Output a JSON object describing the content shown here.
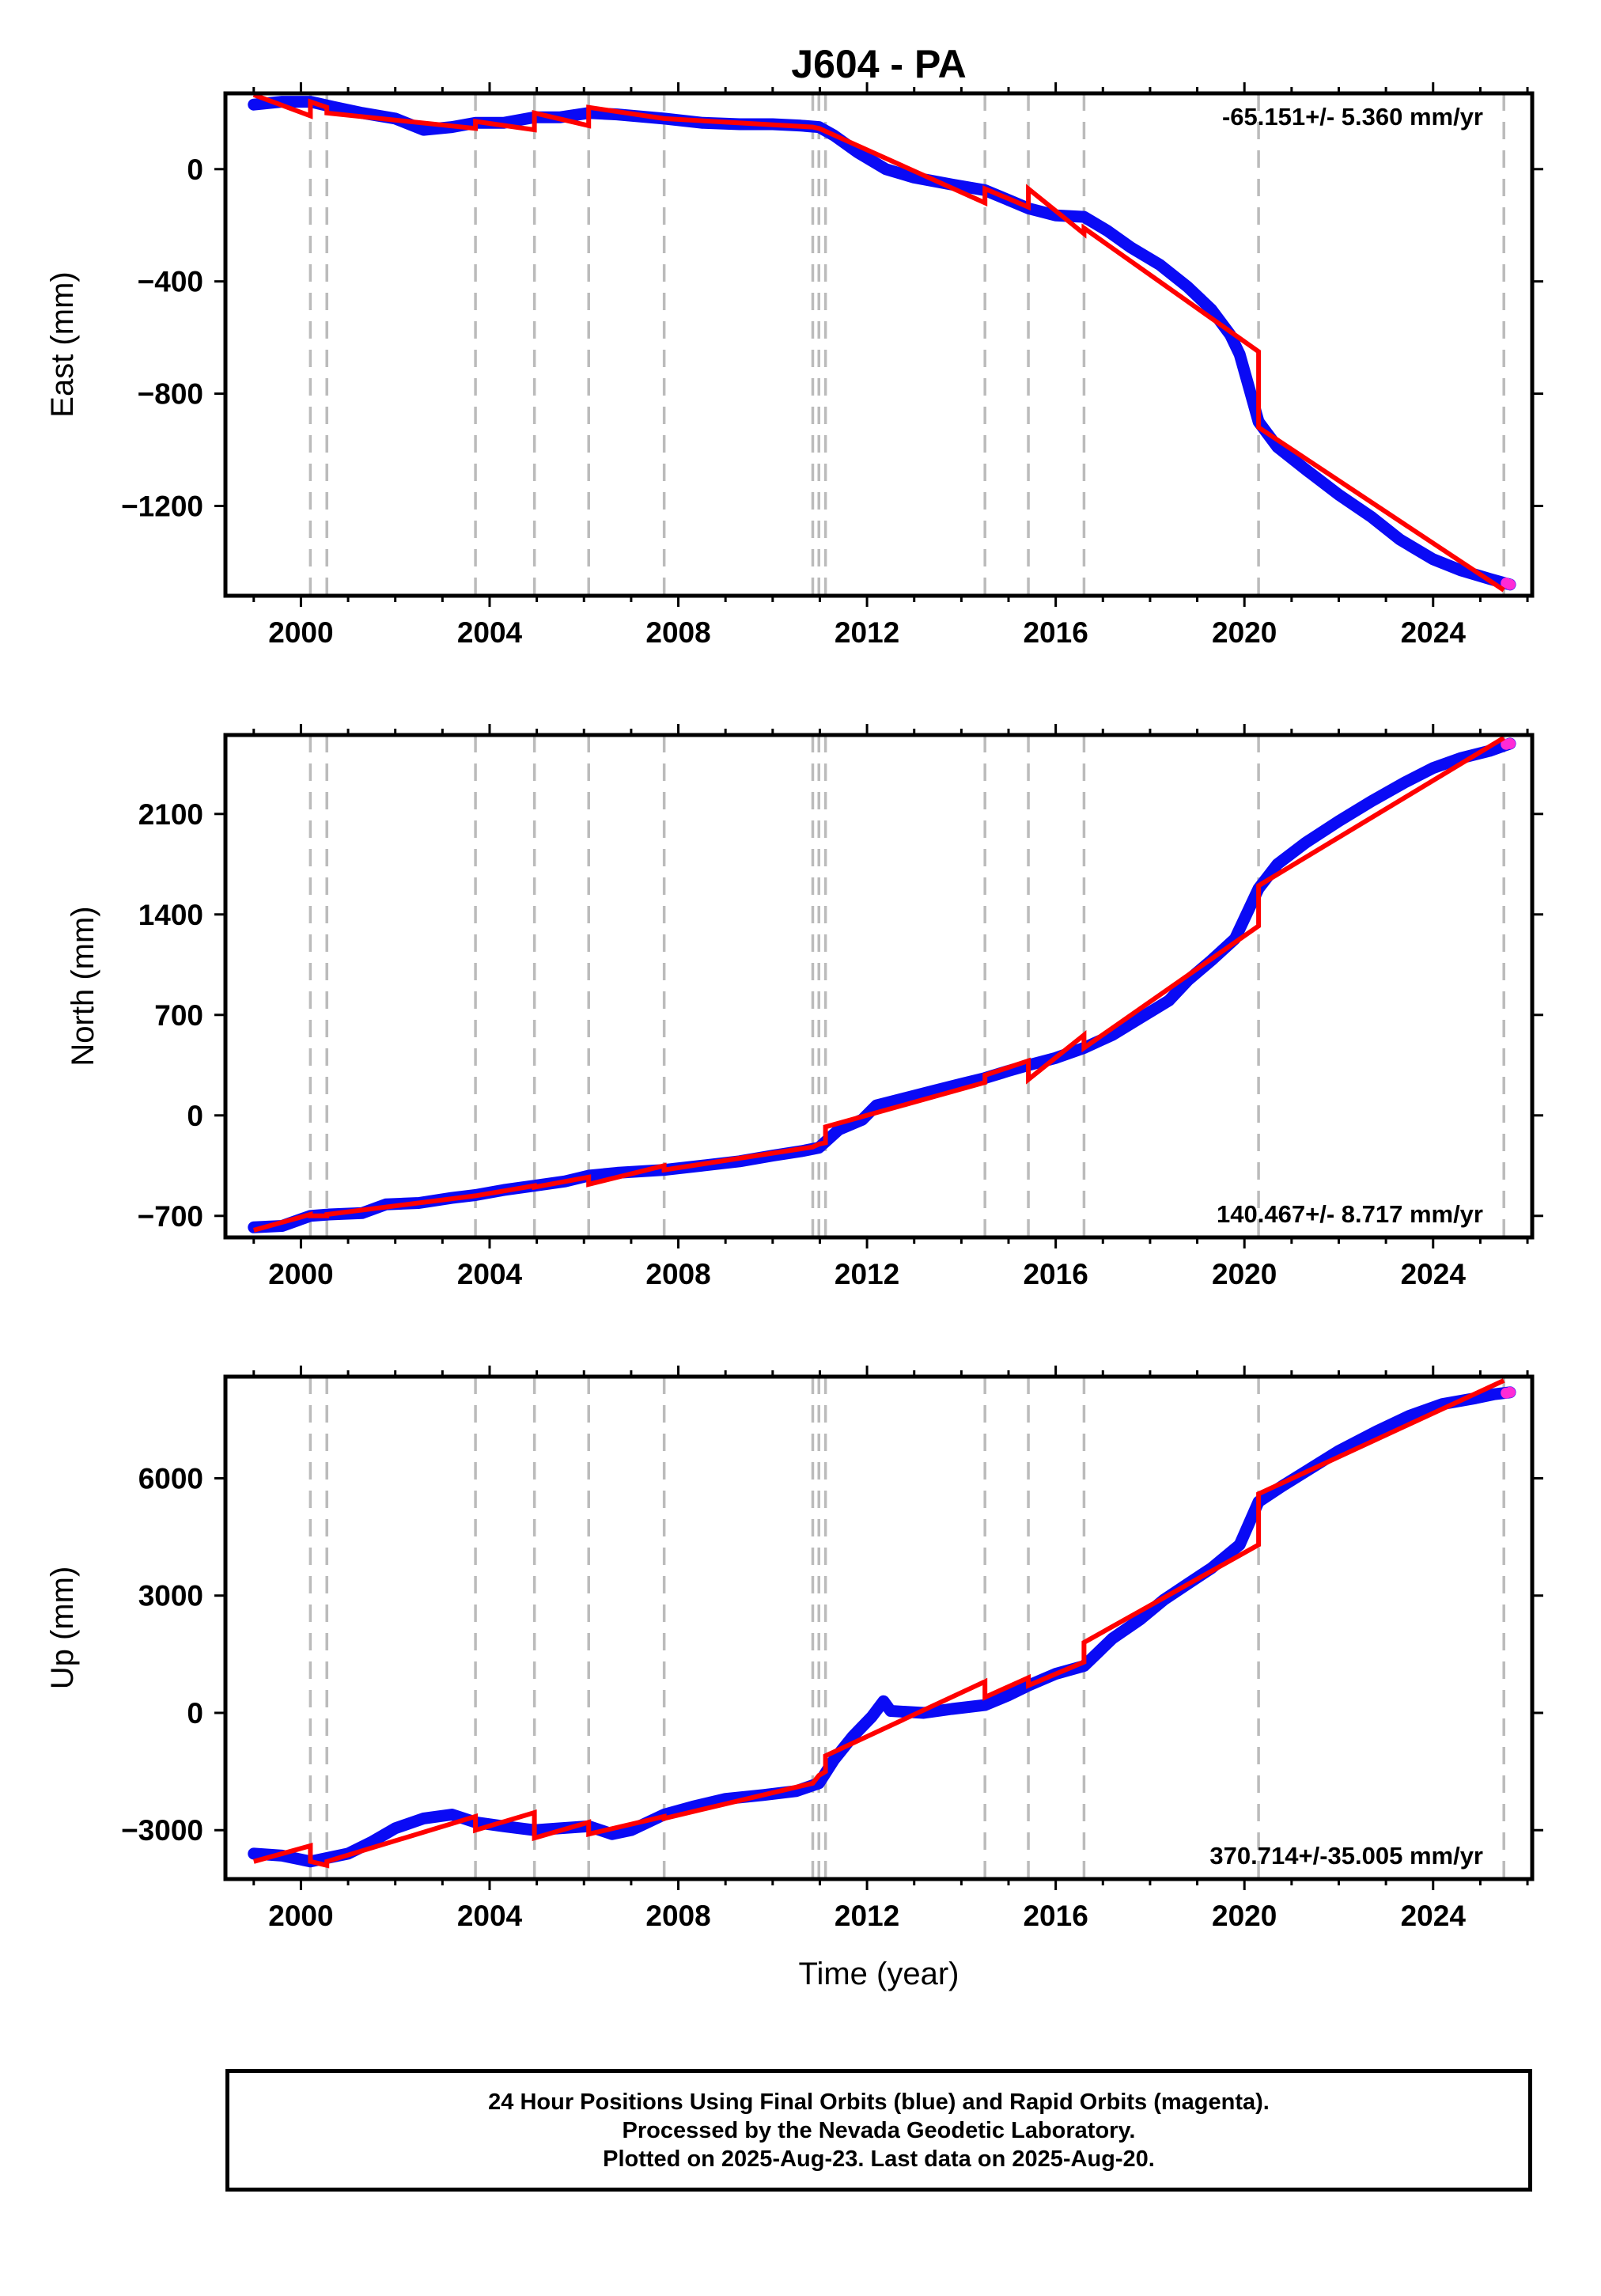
{
  "title": "J604 - PA",
  "xlabel": "Time (year)",
  "xticks": [
    2000,
    2004,
    2008,
    2012,
    2016,
    2020,
    2024
  ],
  "xlim": [
    1998.4,
    2026.1
  ],
  "event_lines": [
    2000.2,
    2000.55,
    2003.7,
    2004.95,
    2006.1,
    2007.7,
    2010.85,
    2010.98,
    2011.12,
    2014.5,
    2015.42,
    2016.6,
    2020.3,
    2025.5
  ],
  "footer": {
    "line1": "24 Hour Positions Using Final Orbits (blue) and Rapid Orbits (magenta).",
    "line2": "Processed by the Nevada Geodetic Laboratory.",
    "line3": "Plotted on 2025-Aug-23. Last data on 2025-Aug-20."
  },
  "colors": {
    "final_orbits": "#0a0af5",
    "rapid_orbits": "#ff2bd6",
    "model": "#ff0000",
    "event_lines": "#bbbbbb"
  },
  "chart_data": [
    {
      "type": "line",
      "panel": "east",
      "ylabel": "East (mm)",
      "yticks": [
        0,
        -400,
        -800,
        -1200
      ],
      "ytick_labels": [
        "0",
        "−400",
        "−800",
        "−1200"
      ],
      "ylim": [
        -1520,
        270
      ],
      "rate_text": "-65.151+/- 5.360 mm/yr",
      "rate_position": "top-right",
      "series": [
        {
          "role": "data",
          "x": [
            1999.0,
            1999.6,
            2000.2,
            2000.6,
            2001.3,
            2002.0,
            2002.6,
            2003.2,
            2003.7,
            2004.3,
            2004.95,
            2005.5,
            2006.1,
            2006.7,
            2007.7,
            2008.5,
            2009.3,
            2010.0,
            2010.6,
            2010.98,
            2011.3,
            2011.8,
            2012.4,
            2013.0,
            2013.8,
            2014.5,
            2015.0,
            2015.42,
            2016.0,
            2016.6,
            2017.1,
            2017.6,
            2018.2,
            2018.8,
            2019.3,
            2019.7,
            2019.9,
            2020.1,
            2020.3,
            2020.7,
            2021.3,
            2022.0,
            2022.7,
            2023.3,
            2024.0,
            2024.6,
            2025.2,
            2025.63
          ],
          "y": [
            230,
            240,
            240,
            225,
            200,
            180,
            140,
            150,
            165,
            165,
            185,
            185,
            200,
            195,
            180,
            165,
            160,
            160,
            155,
            150,
            120,
            60,
            0,
            -30,
            -55,
            -75,
            -110,
            -140,
            -165,
            -170,
            -220,
            -280,
            -340,
            -420,
            -500,
            -590,
            -660,
            -780,
            -900,
            -990,
            -1070,
            -1160,
            -1240,
            -1320,
            -1390,
            -1430,
            -1460,
            -1480
          ]
        },
        {
          "role": "rapid",
          "x": [
            2025.55,
            2025.63
          ],
          "y": [
            -1475,
            -1480
          ]
        },
        {
          "role": "model",
          "x": [
            1999.0,
            2000.2,
            2000.2,
            2000.55,
            2000.55,
            2003.7,
            2003.7,
            2004.95,
            2004.95,
            2006.1,
            2006.1,
            2007.7,
            2007.7,
            2010.85,
            2010.98,
            2011.12,
            2014.5,
            2014.5,
            2015.42,
            2015.42,
            2016.6,
            2016.6,
            2020.3,
            2020.3,
            2025.5
          ],
          "y": [
            265,
            190,
            240,
            220,
            200,
            145,
            170,
            140,
            200,
            155,
            220,
            180,
            180,
            150,
            145,
            135,
            -120,
            -70,
            -135,
            -70,
            -230,
            -210,
            -650,
            -920,
            -1500
          ]
        }
      ]
    },
    {
      "type": "line",
      "panel": "north",
      "ylabel": "North (mm)",
      "yticks": [
        2100,
        1400,
        700,
        0,
        -700
      ],
      "ytick_labels": [
        "2100",
        "1400",
        "700",
        "0",
        "−700"
      ],
      "ylim": [
        -850,
        2650
      ],
      "rate_text": "140.467+/- 8.717 mm/yr",
      "rate_position": "bottom-right",
      "series": [
        {
          "role": "data",
          "x": [
            1999.0,
            1999.6,
            2000.2,
            2000.6,
            2001.3,
            2001.8,
            2002.5,
            2003.2,
            2003.7,
            2004.3,
            2004.95,
            2005.6,
            2006.1,
            2006.7,
            2007.7,
            2008.5,
            2009.3,
            2010.0,
            2010.6,
            2010.98,
            2011.4,
            2011.9,
            2012.2,
            2012.8,
            2013.4,
            2014.0,
            2014.5,
            2015.0,
            2015.42,
            2016.0,
            2016.6,
            2017.2,
            2017.8,
            2018.4,
            2018.8,
            2019.3,
            2019.8,
            2020.0,
            2020.3,
            2020.7,
            2021.3,
            2022.0,
            2022.7,
            2023.4,
            2024.0,
            2024.6,
            2025.2,
            2025.63
          ],
          "y": [
            -780,
            -770,
            -700,
            -690,
            -680,
            -620,
            -610,
            -575,
            -555,
            -520,
            -490,
            -460,
            -420,
            -400,
            -380,
            -350,
            -320,
            -280,
            -250,
            -225,
            -100,
            -30,
            70,
            120,
            170,
            220,
            260,
            310,
            350,
            400,
            470,
            560,
            680,
            800,
            940,
            1080,
            1230,
            1370,
            1580,
            1750,
            1900,
            2050,
            2190,
            2320,
            2420,
            2490,
            2540,
            2590
          ]
        },
        {
          "role": "rapid",
          "x": [
            2025.55,
            2025.63
          ],
          "y": [
            2585,
            2590
          ]
        },
        {
          "role": "model",
          "x": [
            1999.0,
            2000.2,
            2000.2,
            2000.55,
            2000.55,
            2003.7,
            2003.7,
            2004.95,
            2004.95,
            2006.1,
            2006.1,
            2007.7,
            2007.7,
            2010.85,
            2010.98,
            2011.12,
            2011.12,
            2014.5,
            2014.5,
            2015.42,
            2015.42,
            2016.6,
            2016.6,
            2020.3,
            2020.3,
            2025.5
          ],
          "y": [
            -800,
            -690,
            -700,
            -700,
            -690,
            -560,
            -560,
            -490,
            -500,
            -430,
            -480,
            -350,
            -380,
            -220,
            -200,
            -190,
            -80,
            230,
            280,
            380,
            250,
            560,
            470,
            1320,
            1600,
            2630
          ]
        }
      ]
    },
    {
      "type": "line",
      "panel": "up",
      "ylabel": "Up (mm)",
      "yticks": [
        6000,
        3000,
        0,
        -3000
      ],
      "ytick_labels": [
        "6000",
        "3000",
        "0",
        "−3000"
      ],
      "ylim": [
        -4250,
        8600
      ],
      "rate_text": "370.714+/-35.005 mm/yr",
      "rate_position": "bottom-right",
      "series": [
        {
          "role": "data",
          "x": [
            1999.0,
            1999.6,
            2000.2,
            2000.6,
            2001.0,
            2001.5,
            2002.0,
            2002.6,
            2003.2,
            2003.7,
            2004.3,
            2004.95,
            2005.5,
            2006.1,
            2006.6,
            2007.0,
            2007.7,
            2008.3,
            2009.0,
            2009.8,
            2010.5,
            2010.98,
            2011.3,
            2011.7,
            2012.1,
            2012.35,
            2012.5,
            2013.2,
            2013.8,
            2014.5,
            2015.0,
            2015.42,
            2016.0,
            2016.6,
            2017.2,
            2017.8,
            2018.3,
            2018.8,
            2019.3,
            2019.9,
            2020.3,
            2020.8,
            2021.4,
            2022.0,
            2022.8,
            2023.5,
            2024.2,
            2024.9,
            2025.3,
            2025.63
          ],
          "y": [
            -3600,
            -3650,
            -3800,
            -3700,
            -3600,
            -3300,
            -2950,
            -2700,
            -2600,
            -2800,
            -2900,
            -3000,
            -2950,
            -2900,
            -3100,
            -3000,
            -2600,
            -2400,
            -2200,
            -2100,
            -2000,
            -1800,
            -1200,
            -600,
            -100,
            300,
            50,
            0,
            100,
            200,
            450,
            700,
            1000,
            1200,
            1900,
            2400,
            2900,
            3300,
            3700,
            4300,
            5400,
            5800,
            6250,
            6700,
            7200,
            7600,
            7900,
            8050,
            8150,
            8200
          ]
        },
        {
          "role": "rapid",
          "x": [
            2025.55,
            2025.63
          ],
          "y": [
            8180,
            8200
          ]
        },
        {
          "role": "model",
          "x": [
            1999.0,
            2000.2,
            2000.2,
            2000.55,
            2000.55,
            2003.7,
            2003.7,
            2004.95,
            2004.95,
            2006.1,
            2006.1,
            2007.7,
            2007.7,
            2010.85,
            2010.98,
            2011.12,
            2011.12,
            2014.5,
            2014.5,
            2015.42,
            2015.42,
            2016.6,
            2016.6,
            2020.3,
            2020.3,
            2025.5
          ],
          "y": [
            -3800,
            -3400,
            -3800,
            -3900,
            -3800,
            -2650,
            -3000,
            -2550,
            -3200,
            -2800,
            -3100,
            -2650,
            -2700,
            -1800,
            -1600,
            -1500,
            -1100,
            800,
            400,
            900,
            700,
            1300,
            1800,
            4300,
            5600,
            8500
          ]
        }
      ]
    }
  ]
}
